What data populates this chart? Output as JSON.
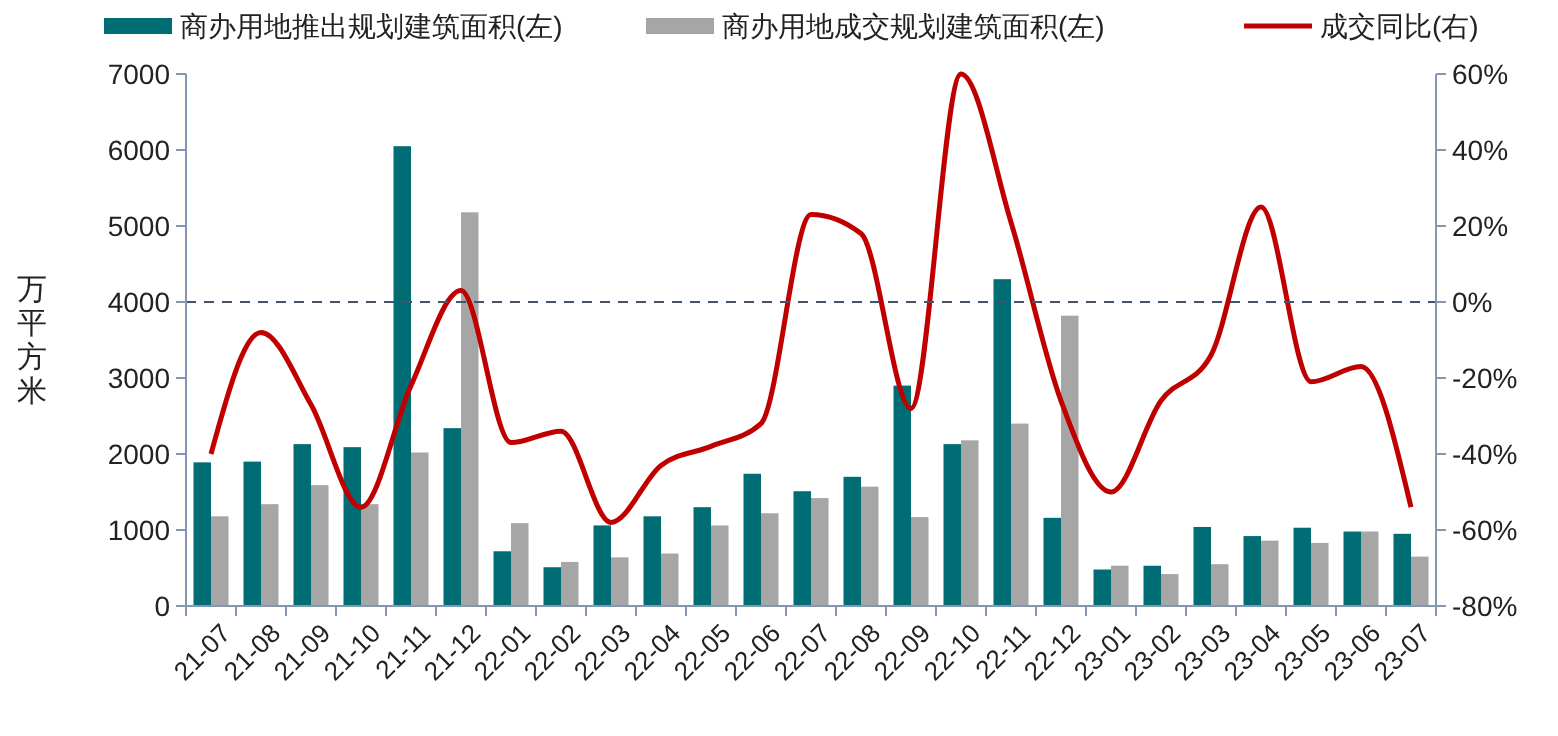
{
  "chart_data": {
    "type": "bar",
    "ylabel": "万平方米",
    "categories": [
      "21-07",
      "21-08",
      "21-09",
      "21-10",
      "21-11",
      "21-12",
      "22-01",
      "22-02",
      "22-03",
      "22-04",
      "22-05",
      "22-06",
      "22-07",
      "22-08",
      "22-09",
      "22-10",
      "22-11",
      "22-12",
      "23-01",
      "23-02",
      "23-03",
      "23-04",
      "23-05",
      "23-06",
      "23-07"
    ],
    "series": [
      {
        "name": "商办用地推出规划建筑面积(左)",
        "color": "#006d75",
        "values": [
          1890,
          1900,
          2130,
          2090,
          6050,
          2340,
          720,
          510,
          1060,
          1180,
          1300,
          1740,
          1510,
          1700,
          2900,
          2130,
          4300,
          1160,
          480,
          530,
          1040,
          920,
          1030,
          980,
          950
        ]
      },
      {
        "name": "商办用地成交规划建筑面积(左)",
        "color": "#a6a6a6",
        "values": [
          1180,
          1340,
          1590,
          1340,
          2020,
          5180,
          1090,
          580,
          640,
          690,
          1060,
          1220,
          1420,
          1570,
          1170,
          2180,
          2400,
          3820,
          530,
          420,
          550,
          860,
          830,
          980,
          650
        ]
      },
      {
        "name": "成交同比(右)",
        "type": "line",
        "axis": "y2",
        "color": "#c00000",
        "values": [
          -40,
          -8,
          -27,
          -54,
          -22,
          3,
          -37,
          -34,
          -58,
          -43,
          -38,
          -32,
          23,
          18,
          -28,
          60,
          21,
          -26,
          -50,
          -26,
          -14,
          25,
          -21,
          -17,
          -54
        ]
      }
    ],
    "ylim": [
      0,
      7000
    ],
    "yticks": [
      0,
      1000,
      2000,
      3000,
      4000,
      5000,
      6000,
      7000
    ],
    "y2lim": [
      -80,
      60
    ],
    "y2ticks": [
      {
        "value": -80,
        "label": "-80%"
      },
      {
        "value": -60,
        "label": "-60%"
      },
      {
        "value": -40,
        "label": "-40%"
      },
      {
        "value": -20,
        "label": "-20%"
      },
      {
        "value": 0,
        "label": "0%"
      },
      {
        "value": 20,
        "label": "20%"
      },
      {
        "value": 40,
        "label": "40%"
      },
      {
        "value": 60,
        "label": "60%"
      }
    ],
    "ref_lines": [
      {
        "axis": "y2",
        "value": 0,
        "color": "#44546a",
        "line_style": "dashed"
      }
    ],
    "legend": "top",
    "grid": false
  }
}
